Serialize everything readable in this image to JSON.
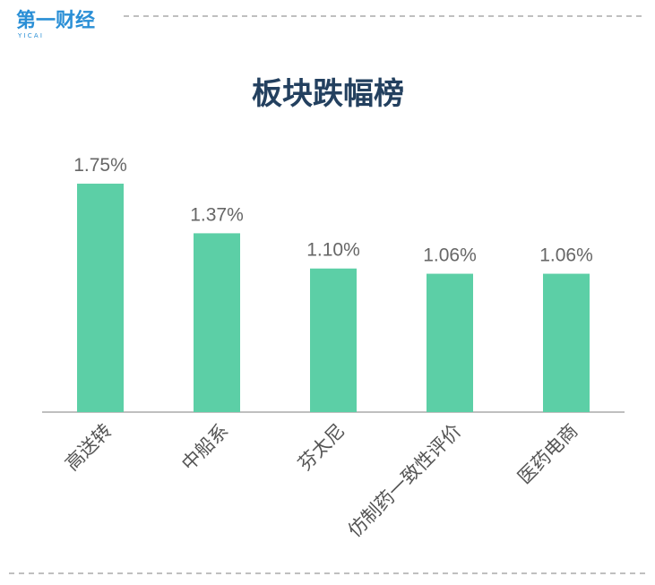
{
  "logo": {
    "name": "第一财经",
    "letters": "Y I C A I"
  },
  "chart_data": {
    "type": "bar",
    "title": "板块跌幅榜",
    "categories": [
      "高送转",
      "中船系",
      "芬太尼",
      "仿制药一致性评价",
      "医药电商"
    ],
    "values": [
      1.75,
      1.37,
      1.1,
      1.06,
      1.06
    ],
    "value_labels": [
      "1.75%",
      "1.37%",
      "1.10%",
      "1.06%",
      "1.06%"
    ],
    "color": "#5ccfa6"
  }
}
